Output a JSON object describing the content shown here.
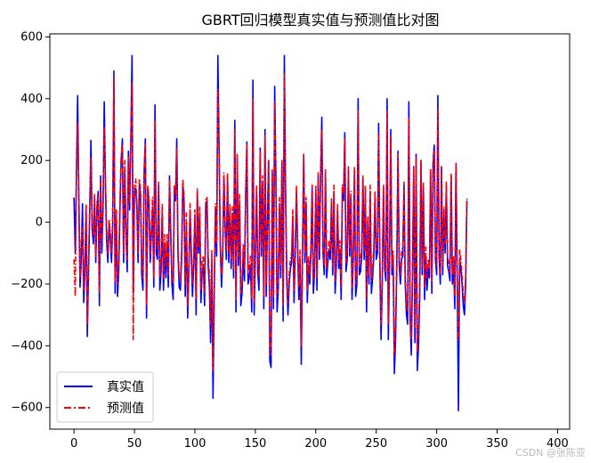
{
  "chart_data": {
    "type": "line",
    "title": "GBRT回归模型真实值与预测值比对图",
    "xlabel": "",
    "ylabel": "",
    "xlim": [
      -20,
      410
    ],
    "ylim": [
      -670,
      610
    ],
    "x_ticks": [
      0,
      50,
      100,
      150,
      200,
      250,
      300,
      350,
      400
    ],
    "y_ticks": [
      -600,
      -400,
      -200,
      0,
      200,
      400,
      600
    ],
    "grid": false,
    "legend_position": "lower-left",
    "x_start": 0,
    "series": [
      {
        "name": "真实值",
        "color": "#0000ff",
        "style": "solid",
        "values": [
          80,
          -100,
          160,
          410,
          60,
          -210,
          -120,
          60,
          -260,
          -160,
          50,
          -370,
          -160,
          30,
          265,
          -20,
          -70,
          80,
          -130,
          40,
          100,
          -270,
          150,
          -100,
          40,
          390,
          120,
          -60,
          -130,
          -10,
          -50,
          -130,
          -10,
          490,
          -230,
          20,
          -240,
          -160,
          40,
          200,
          270,
          -130,
          180,
          -40,
          -160,
          230,
          40,
          270,
          540,
          -230,
          100,
          110,
          50,
          -130,
          120,
          90,
          -170,
          -220,
          160,
          270,
          -310,
          110,
          60,
          -130,
          -40,
          50,
          -210,
          380,
          -100,
          -120,
          120,
          -220,
          -160,
          30,
          -220,
          -80,
          -180,
          -60,
          -210,
          150,
          -40,
          -200,
          -250,
          110,
          70,
          270,
          -100,
          -210,
          -220,
          -120,
          120,
          70,
          -240,
          0,
          -310,
          -160,
          40,
          -110,
          -240,
          -140,
          20,
          -300,
          100,
          -100,
          30,
          -260,
          -160,
          -140,
          -270,
          60,
          70,
          -140,
          -210,
          -390,
          -120,
          -570,
          -230,
          40,
          -110,
          540,
          250,
          -80,
          -210,
          -110,
          150,
          -20,
          -120,
          150,
          -130,
          40,
          -150,
          30,
          -180,
          330,
          -290,
          210,
          -140,
          70,
          -270,
          -230,
          -100,
          -190,
          80,
          260,
          -200,
          -180,
          -140,
          -290,
          460,
          -300,
          -120,
          100,
          -160,
          -220,
          240,
          -110,
          130,
          -280,
          300,
          -240,
          0,
          200,
          -450,
          -470,
          160,
          -280,
          440,
          150,
          -290,
          -210,
          60,
          -180,
          200,
          -320,
          540,
          100,
          -190,
          -300,
          -200,
          -150,
          -130,
          20,
          -260,
          -110,
          100,
          -90,
          -250,
          -120,
          -460,
          -120,
          220,
          -130,
          60,
          -260,
          -140,
          -200,
          -100,
          110,
          -230,
          -160,
          100,
          -220,
          150,
          -120,
          150,
          340,
          -100,
          -170,
          160,
          -180,
          -130,
          -90,
          -120,
          60,
          -170,
          100,
          -230,
          -140,
          40,
          -150,
          -90,
          -250,
          110,
          70,
          290,
          -160,
          -120,
          170,
          -110,
          80,
          -250,
          -120,
          170,
          -240,
          -200,
          400,
          -170,
          -160,
          -110,
          140,
          -120,
          100,
          -290,
          0,
          -200,
          100,
          -230,
          -180,
          -110,
          80,
          -120,
          -100,
          320,
          -140,
          -380,
          -200,
          110,
          -150,
          -190,
          400,
          -380,
          -140,
          300,
          -170,
          -120,
          -490,
          -380,
          -150,
          230,
          -140,
          -200,
          -120,
          -110,
          120,
          -200,
          -300,
          -330,
          390,
          -300,
          -430,
          -180,
          180,
          -390,
          220,
          -480,
          -400,
          -240,
          200,
          -170,
          120,
          -250,
          -110,
          -220,
          -150,
          -180,
          170,
          -230,
          190,
          250,
          -120,
          -170,
          410,
          -110,
          -200,
          180,
          -170,
          30,
          -100,
          120,
          -140,
          -160,
          -190,
          150,
          -200,
          -140,
          -280,
          190,
          -180,
          -610,
          -120,
          -150,
          -200,
          -270,
          -300,
          -200,
          70
        ],
        "note": ""
      },
      {
        "name": "预测值",
        "color": "#ff0000",
        "style": "dashdot",
        "values": [
          -120,
          -240,
          140,
          320,
          100,
          -180,
          -60,
          -20,
          -220,
          -120,
          60,
          -330,
          -120,
          60,
          210,
          -10,
          -40,
          90,
          -110,
          70,
          80,
          -230,
          140,
          -60,
          60,
          310,
          130,
          -20,
          -100,
          10,
          -30,
          -100,
          20,
          470,
          -190,
          40,
          -200,
          -120,
          70,
          210,
          250,
          -100,
          200,
          -20,
          -120,
          210,
          60,
          260,
          450,
          -380,
          110,
          140,
          70,
          -100,
          140,
          110,
          -130,
          -180,
          170,
          250,
          -270,
          120,
          80,
          -100,
          -20,
          80,
          -180,
          330,
          -60,
          -90,
          130,
          -180,
          -120,
          60,
          -180,
          -40,
          -140,
          -40,
          -170,
          140,
          -20,
          -170,
          -200,
          120,
          90,
          240,
          -70,
          -170,
          -190,
          -90,
          140,
          90,
          -200,
          30,
          -270,
          -130,
          60,
          -80,
          -200,
          -110,
          40,
          -250,
          110,
          -80,
          50,
          -220,
          -120,
          -110,
          -230,
          80,
          80,
          -110,
          -170,
          -330,
          -90,
          -480,
          -200,
          60,
          -70,
          430,
          230,
          -60,
          -170,
          -80,
          160,
          0,
          -90,
          160,
          -100,
          60,
          -120,
          50,
          -150,
          300,
          -250,
          220,
          -110,
          90,
          -230,
          -190,
          -70,
          -150,
          100,
          250,
          -160,
          -140,
          -110,
          -250,
          400,
          -260,
          -80,
          120,
          -120,
          -180,
          230,
          -80,
          150,
          -240,
          280,
          -200,
          20,
          200,
          -410,
          -430,
          170,
          -240,
          390,
          160,
          -240,
          -170,
          80,
          -140,
          200,
          -270,
          480,
          110,
          -150,
          -260,
          -170,
          -120,
          -100,
          40,
          -220,
          -80,
          120,
          -60,
          -210,
          -90,
          -400,
          -80,
          220,
          -100,
          80,
          -220,
          -110,
          -170,
          -70,
          120,
          -190,
          -120,
          120,
          -180,
          160,
          -90,
          160,
          300,
          -70,
          -140,
          170,
          -150,
          -100,
          -60,
          -90,
          80,
          -140,
          120,
          -190,
          -110,
          60,
          -120,
          -60,
          -210,
          120,
          90,
          270,
          -130,
          -90,
          180,
          -80,
          100,
          -210,
          -90,
          180,
          -200,
          -170,
          360,
          -140,
          -120,
          -80,
          150,
          -90,
          120,
          -250,
          20,
          -170,
          120,
          -190,
          -150,
          -80,
          100,
          -90,
          -70,
          290,
          -110,
          -330,
          -170,
          120,
          -120,
          -160,
          360,
          -330,
          -110,
          280,
          -140,
          -90,
          -430,
          -330,
          -120,
          220,
          -110,
          -170,
          -90,
          -80,
          130,
          -170,
          -260,
          -290,
          340,
          -260,
          -380,
          -150,
          180,
          -340,
          210,
          -420,
          -350,
          -200,
          200,
          -140,
          130,
          -210,
          -80,
          -180,
          -120,
          -150,
          170,
          -190,
          190,
          230,
          -90,
          -140,
          370,
          -80,
          -170,
          180,
          -140,
          50,
          -70,
          130,
          -110,
          -130,
          -160,
          160,
          -170,
          -110,
          -240,
          190,
          -150,
          -380,
          -90,
          -120,
          -170,
          -230,
          -260,
          -170,
          80
        ]
      }
    ]
  },
  "legend": {
    "items": [
      {
        "label": "真实值",
        "color": "#0000ff",
        "style": "solid"
      },
      {
        "label": "预测值",
        "color": "#ff0000",
        "style": "dashdot"
      }
    ]
  },
  "watermark": "CSDN @张陈亚"
}
